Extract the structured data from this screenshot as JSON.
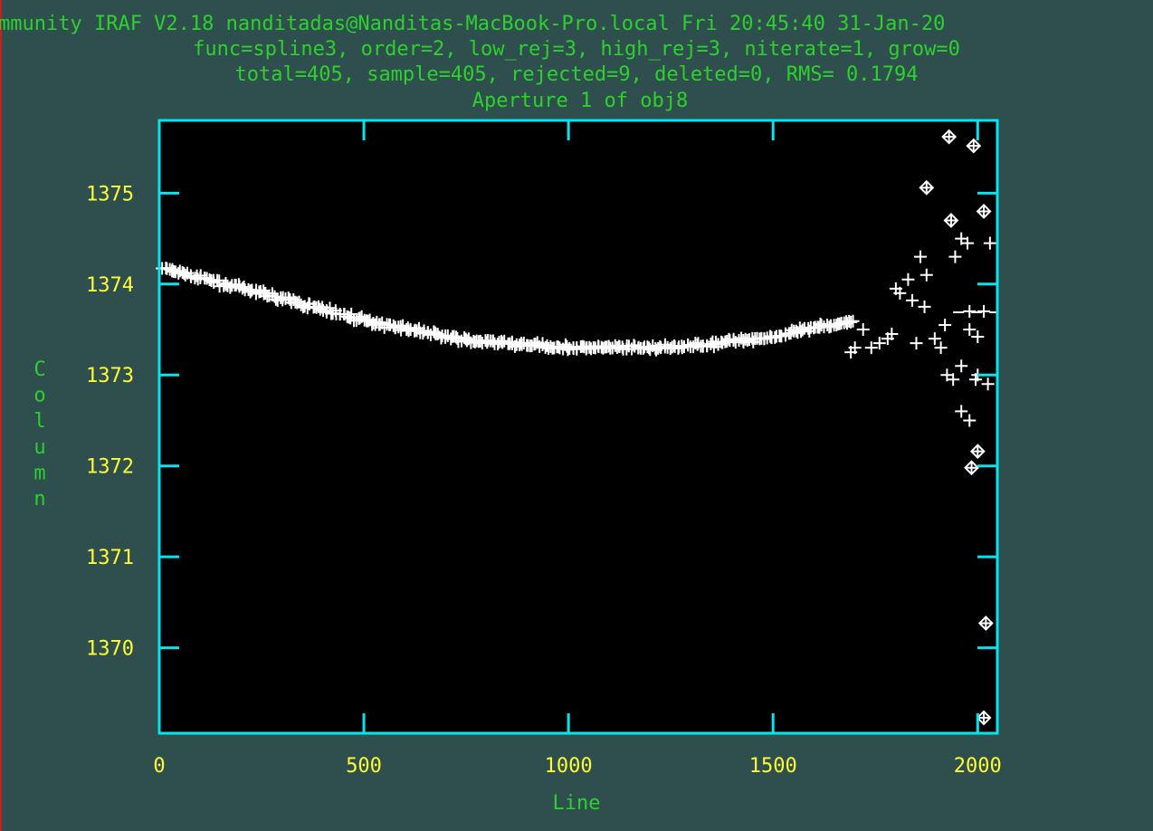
{
  "header": {
    "line1": "mmunity IRAF V2.18 nanditadas@Nanditas-MacBook-Pro.local Fri 20:45:40 31-Jan-20",
    "line2": "func=spline3, order=2, low_rej=3, high_rej=3, niterate=1, grow=0",
    "line3": "total=405, sample=405, rejected=9, deleted=0, RMS= 0.1794",
    "line4": "Aperture 1 of obj8"
  },
  "chart_data": {
    "type": "scatter",
    "title": "Aperture 1 of obj8",
    "xlabel": "Line",
    "ylabel": "Column",
    "xlim": [
      0,
      2048
    ],
    "ylim": [
      1369.06,
      1375.8
    ],
    "x_ticks": [
      0,
      500,
      1000,
      1500,
      2000
    ],
    "y_ticks": [
      1370,
      1371,
      1372,
      1373,
      1374,
      1375
    ],
    "grid": false,
    "colors": {
      "axes": "#00e5ee",
      "tick_labels": "#ffff33",
      "axis_labels": "#2cd12c",
      "points": "#ffffff",
      "plot_bg": "#000000"
    },
    "fit": {
      "x": [
        0,
        250,
        500,
        750,
        1000,
        1250,
        1500,
        1750,
        2048
      ],
      "y": [
        1374.18,
        1373.9,
        1373.6,
        1373.38,
        1373.3,
        1373.3,
        1373.42,
        1373.65,
        1373.7
      ]
    },
    "rejected_points": {
      "x": [
        1930,
        1990,
        1875,
        1935,
        2015,
        1985,
        2000,
        2020,
        2015
      ],
      "y": [
        1375.62,
        1375.52,
        1375.06,
        1374.7,
        1374.8,
        1371.98,
        1372.16,
        1370.27,
        1369.23
      ]
    },
    "scatter_points": {
      "x": [
        1960,
        1975,
        1945,
        1860,
        1875,
        1830,
        1800,
        1840,
        1810,
        1790,
        1895,
        1850,
        1910,
        1920,
        1870,
        1980,
        2000,
        1960,
        1925,
        1940,
        1960,
        1980,
        1995,
        2000,
        2025,
        2030,
        2015,
        1980,
        1720,
        1740,
        1760,
        1780,
        1700,
        1690
      ],
      "y": [
        1374.5,
        1374.45,
        1374.3,
        1374.3,
        1374.1,
        1374.05,
        1373.95,
        1373.82,
        1373.9,
        1373.45,
        1373.4,
        1373.35,
        1373.3,
        1373.55,
        1373.75,
        1373.7,
        1373.42,
        1373.1,
        1373.0,
        1372.95,
        1372.6,
        1372.5,
        1372.95,
        1373.0,
        1372.9,
        1374.45,
        1373.7,
        1373.5,
        1373.5,
        1373.3,
        1373.35,
        1373.4,
        1373.3,
        1373.25
      ]
    },
    "sample_count": 405
  }
}
